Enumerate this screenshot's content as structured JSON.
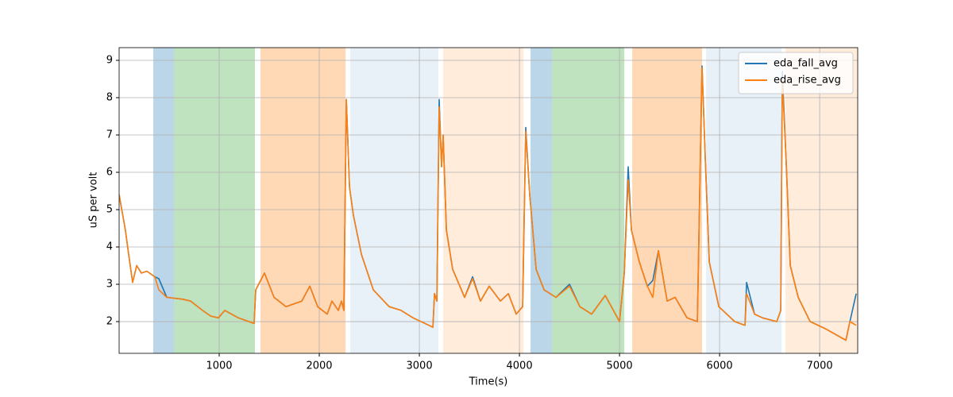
{
  "chart_data": {
    "type": "line",
    "xlabel": "Time(s)",
    "ylabel": "uS per volt",
    "xlim": [
      0,
      7380
    ],
    "ylim": [
      1.15,
      9.34
    ],
    "xticks": [
      1000,
      2000,
      3000,
      4000,
      5000,
      6000,
      7000
    ],
    "yticks": [
      2,
      3,
      4,
      5,
      6,
      7,
      8,
      9
    ],
    "grid": true,
    "legend": "upper right",
    "spans": [
      {
        "start": 341,
        "end": 548,
        "color": "#1f77b4",
        "opacity": 0.3
      },
      {
        "start": 548,
        "end": 1357,
        "color": "#2ca02c",
        "opacity": 0.3
      },
      {
        "start": 1413,
        "end": 2262,
        "color": "#ff7f0e",
        "opacity": 0.3
      },
      {
        "start": 2310,
        "end": 3190,
        "color": "#1f77b4",
        "opacity": 0.1
      },
      {
        "start": 3238,
        "end": 4040,
        "color": "#ff7f0e",
        "opacity": 0.15
      },
      {
        "start": 4111,
        "end": 4325,
        "color": "#1f77b4",
        "opacity": 0.3
      },
      {
        "start": 4325,
        "end": 5048,
        "color": "#2ca02c",
        "opacity": 0.3
      },
      {
        "start": 5127,
        "end": 5825,
        "color": "#ff7f0e",
        "opacity": 0.3
      },
      {
        "start": 5865,
        "end": 6619,
        "color": "#1f77b4",
        "opacity": 0.1
      },
      {
        "start": 6659,
        "end": 7380,
        "color": "#ff7f0e",
        "opacity": 0.15
      }
    ],
    "x": [
      0,
      63,
      95,
      135,
      175,
      222,
      278,
      357,
      397,
      476,
      635,
      714,
      833,
      913,
      992,
      1056,
      1190,
      1349,
      1365,
      1452,
      1548,
      1667,
      1825,
      1905,
      1984,
      2079,
      2127,
      2190,
      2222,
      2246,
      2270,
      2302,
      2341,
      2421,
      2540,
      2698,
      2817,
      2937,
      3095,
      3135,
      3151,
      3175,
      3198,
      3222,
      3238,
      3270,
      3333,
      3452,
      3532,
      3611,
      3698,
      3810,
      3889,
      3968,
      4032,
      4063,
      4103,
      4167,
      4246,
      4365,
      4500,
      4603,
      4722,
      4857,
      5000,
      5048,
      5087,
      5119,
      5198,
      5278,
      5333,
      5389,
      5476,
      5556,
      5675,
      5778,
      5825,
      5857,
      5897,
      5992,
      6151,
      6254,
      6270,
      6349,
      6429,
      6571,
      6611,
      6627,
      6667,
      6706,
      6786,
      6905,
      7063,
      7262,
      7302,
      7365
    ],
    "series": [
      {
        "name": "eda_fall_avg",
        "color": "#1f77b4",
        "values": [
          5.4,
          4.45,
          3.8,
          3.05,
          3.5,
          3.3,
          3.35,
          3.2,
          3.15,
          2.65,
          2.6,
          2.55,
          2.3,
          2.15,
          2.1,
          2.3,
          2.1,
          1.95,
          2.85,
          3.3,
          2.65,
          2.4,
          2.55,
          2.95,
          2.4,
          2.2,
          2.55,
          2.3,
          2.55,
          2.3,
          7.95,
          5.6,
          4.85,
          3.8,
          2.85,
          2.4,
          2.3,
          2.1,
          1.9,
          1.85,
          2.75,
          2.55,
          7.95,
          6.15,
          7.0,
          4.45,
          3.4,
          2.65,
          3.2,
          2.55,
          2.95,
          2.55,
          2.75,
          2.2,
          2.4,
          7.2,
          5.4,
          3.4,
          2.85,
          2.65,
          3.0,
          2.4,
          2.2,
          2.7,
          2.0,
          3.3,
          6.15,
          4.45,
          3.6,
          2.95,
          3.1,
          3.9,
          2.55,
          2.65,
          2.1,
          2.0,
          8.85,
          6.35,
          3.6,
          2.4,
          2.0,
          1.9,
          3.05,
          2.2,
          2.1,
          2.0,
          2.3,
          8.7,
          6.15,
          3.5,
          2.65,
          2.0,
          1.8,
          1.5,
          2.0,
          2.75
        ]
      },
      {
        "name": "eda_rise_avg",
        "color": "#ff7f0e",
        "values": [
          5.4,
          4.45,
          3.8,
          3.05,
          3.5,
          3.3,
          3.35,
          3.2,
          2.85,
          2.65,
          2.6,
          2.55,
          2.3,
          2.15,
          2.1,
          2.3,
          2.1,
          1.95,
          2.85,
          3.3,
          2.65,
          2.4,
          2.55,
          2.95,
          2.4,
          2.2,
          2.55,
          2.3,
          2.55,
          2.3,
          7.95,
          5.6,
          4.85,
          3.8,
          2.85,
          2.4,
          2.3,
          2.1,
          1.9,
          1.85,
          2.75,
          2.55,
          7.75,
          6.15,
          7.0,
          4.45,
          3.4,
          2.65,
          3.15,
          2.55,
          2.95,
          2.55,
          2.75,
          2.2,
          2.4,
          7.1,
          5.4,
          3.4,
          2.85,
          2.65,
          2.95,
          2.4,
          2.2,
          2.7,
          2.0,
          3.3,
          5.8,
          4.45,
          3.6,
          2.95,
          2.65,
          3.9,
          2.55,
          2.65,
          2.1,
          2.0,
          8.8,
          6.35,
          3.6,
          2.4,
          2.0,
          1.9,
          2.75,
          2.2,
          2.1,
          2.0,
          2.3,
          8.5,
          6.15,
          3.5,
          2.65,
          2.0,
          1.8,
          1.5,
          2.0,
          1.9
        ]
      }
    ]
  }
}
